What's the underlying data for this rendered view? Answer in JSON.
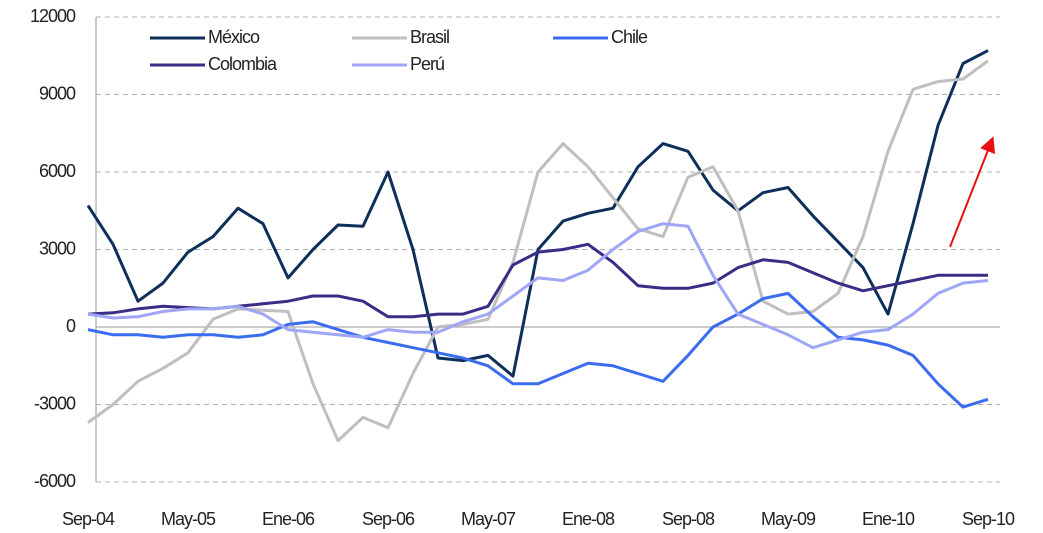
{
  "chart_data": {
    "type": "line",
    "categories": [
      "Sep-04",
      null,
      null,
      null,
      "May-05",
      null,
      null,
      null,
      "Ene-06",
      null,
      null,
      null,
      "Sep-06",
      null,
      null,
      null,
      "May-07",
      null,
      null,
      null,
      "Ene-08",
      null,
      null,
      null,
      "Sep-08",
      null,
      null,
      null,
      "May-09",
      null,
      null,
      null,
      "Ene-10",
      null,
      null,
      null,
      "Sep-10"
    ],
    "series": [
      {
        "name": "México",
        "color": "#0e2f5a",
        "values": [
          4700,
          3200,
          1000,
          1700,
          2900,
          3500,
          4600,
          4000,
          1900,
          3000,
          3950,
          3900,
          6000,
          3000,
          -1200,
          -1300,
          -1100,
          -1900,
          3000,
          4100,
          4400,
          4600,
          6200,
          7100,
          6800,
          5300,
          4500,
          5200,
          5400,
          4300,
          3300,
          2300,
          500,
          4000,
          7800,
          10200,
          10700
        ]
      },
      {
        "name": "Brasil",
        "color": "#bfbfbf",
        "values": [
          -3700,
          -3000,
          -2100,
          -1600,
          -1000,
          300,
          700,
          650,
          600,
          -2200,
          -4400,
          -3500,
          -3900,
          -1800,
          0,
          100,
          300,
          2500,
          6000,
          7100,
          6200,
          5000,
          3800,
          3500,
          5800,
          6200,
          4500,
          1000,
          500,
          600,
          1300,
          3500,
          6800,
          9200,
          9500,
          9600,
          10300
        ]
      },
      {
        "name": "Chile",
        "color": "#3a6cf0",
        "values": [
          -100,
          -300,
          -300,
          -400,
          -300,
          -300,
          -400,
          -300,
          100,
          200,
          -100,
          -400,
          -600,
          -800,
          -1000,
          -1200,
          -1500,
          -2200,
          -2200,
          -1800,
          -1400,
          -1500,
          -1800,
          -2100,
          -1100,
          0,
          500,
          1100,
          1300,
          400,
          -400,
          -500,
          -700,
          -1100,
          -2200,
          -3100,
          -2800
        ]
      },
      {
        "name": "Colombia",
        "color": "#3b2c85",
        "values": [
          500,
          550,
          700,
          800,
          750,
          700,
          800,
          900,
          1000,
          1200,
          1200,
          1000,
          400,
          400,
          500,
          500,
          800,
          2400,
          2900,
          3000,
          3200,
          2500,
          1600,
          1500,
          1500,
          1700,
          2300,
          2600,
          2500,
          2100,
          1700,
          1400,
          1600,
          1800,
          2000,
          2000,
          2000
        ]
      },
      {
        "name": "Perú",
        "color": "#9fa6f5",
        "values": [
          500,
          350,
          400,
          600,
          700,
          700,
          800,
          500,
          -100,
          -200,
          -300,
          -400,
          -100,
          -200,
          -200,
          200,
          500,
          1200,
          1900,
          1800,
          2200,
          3000,
          3700,
          4000,
          3900,
          2000,
          500,
          100,
          -300,
          -800,
          -500,
          -200,
          -100,
          500,
          1300,
          1700,
          1800
        ]
      }
    ],
    "ylim": [
      -6000,
      12000
    ],
    "yticks": [
      -6000,
      -3000,
      0,
      3000,
      6000,
      9000,
      12000
    ],
    "grid": true
  }
}
